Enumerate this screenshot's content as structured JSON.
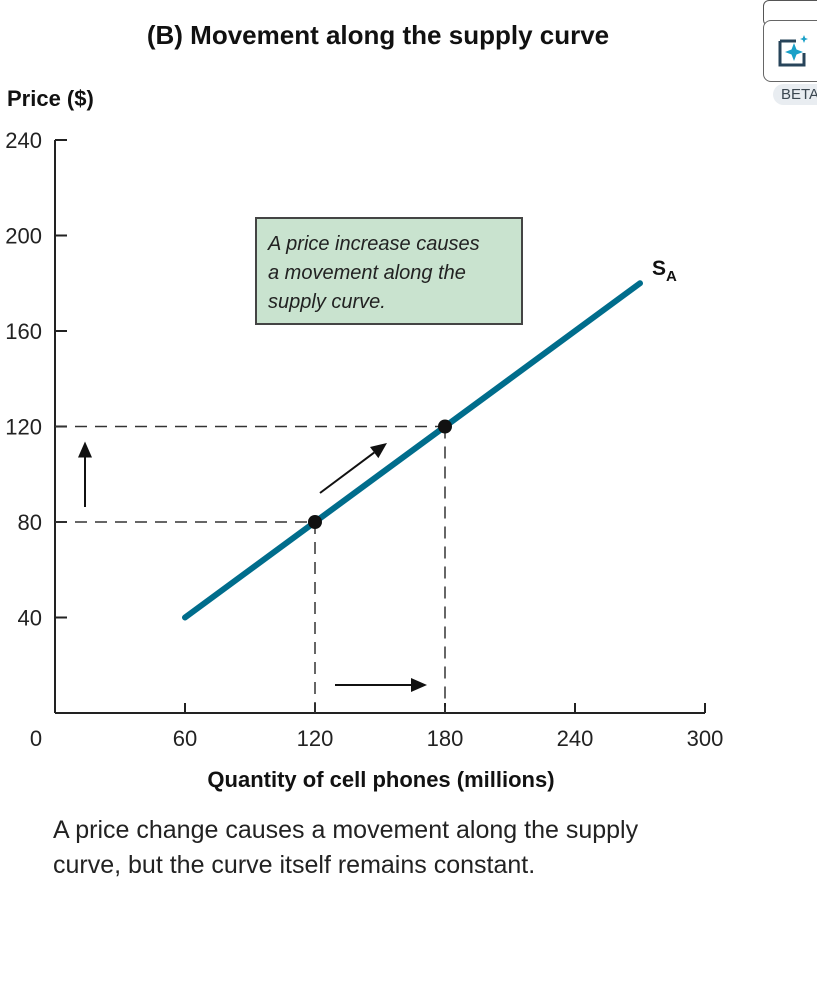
{
  "chart_data": {
    "type": "line",
    "title": "(B) Movement along the supply curve",
    "xlabel": "Quantity of cell phones (millions)",
    "ylabel": "Price ($)",
    "xlim": [
      0,
      300
    ],
    "ylim": [
      0,
      240
    ],
    "x_ticks": [
      0,
      60,
      120,
      180,
      240,
      300
    ],
    "y_ticks": [
      40,
      80,
      120,
      160,
      200,
      240
    ],
    "grid": false,
    "series": [
      {
        "name": "SA",
        "label_main": "S",
        "label_sub": "A",
        "color": "#006d8c",
        "points": [
          [
            60,
            40
          ],
          [
            270,
            180
          ]
        ]
      }
    ],
    "highlight_points": [
      [
        120,
        80
      ],
      [
        180,
        120
      ]
    ],
    "annotation": {
      "lines": [
        "A price increase causes",
        "a movement along the",
        "supply curve."
      ],
      "fill": "#c9e3cf",
      "border": "#444444"
    }
  },
  "caption": "A price change causes a movement along the supply curve, but the curve itself remains constant.",
  "beta_widget": {
    "label": "BETA",
    "icon": "sparkle-add-icon"
  }
}
